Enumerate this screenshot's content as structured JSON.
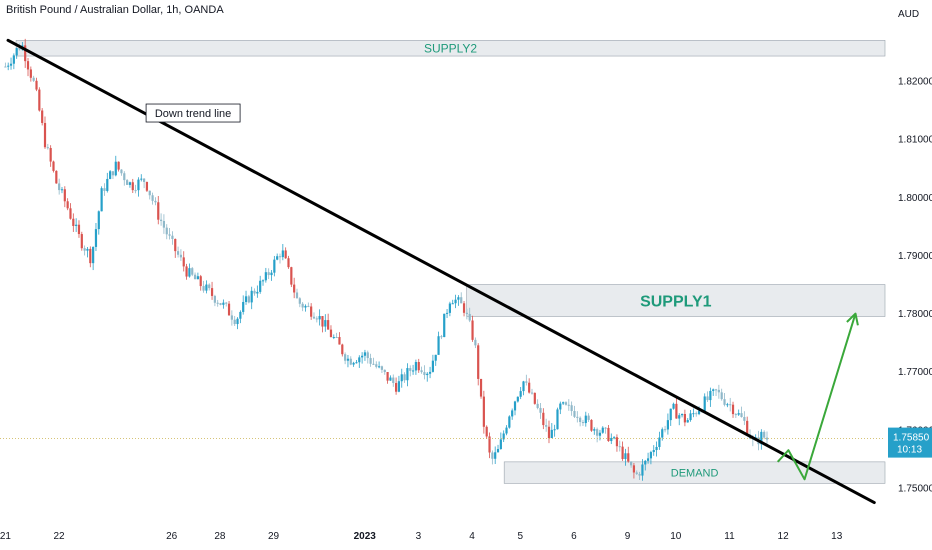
{
  "header": {
    "title": "British Pound / Australian Dollar, 1h, OANDA",
    "currency": "AUD"
  },
  "price_badge": {
    "price": "1.75850",
    "countdown": "10:13"
  },
  "colors": {
    "up": "#26a0c9",
    "down": "#d9534f",
    "trend": "#000000",
    "arrow": "#3aa83a",
    "zone_fill": "#e8ebee",
    "zone_text": "#1e9a7a",
    "badge": "#26a0c9"
  },
  "chart_data": {
    "type": "candlestick",
    "symbol": "GBPAUD",
    "timeframe": "1h",
    "y_axis": {
      "ylim": [
        1.7445,
        1.8305
      ],
      "ticks": [
        "1.82000",
        "1.81000",
        "1.80000",
        "1.79000",
        "1.78000",
        "1.77000",
        "1.76000",
        "1.75000"
      ],
      "tick_values": [
        1.82,
        1.81,
        1.8,
        1.79,
        1.78,
        1.77,
        1.76,
        1.75
      ]
    },
    "x_axis": {
      "labels": [
        {
          "t": 0.0,
          "label": "21",
          "bold": false
        },
        {
          "t": 1.0,
          "label": "22",
          "bold": false
        },
        {
          "t": 3.1,
          "label": "26",
          "bold": false
        },
        {
          "t": 4.0,
          "label": "28",
          "bold": false
        },
        {
          "t": 5.0,
          "label": "29",
          "bold": false
        },
        {
          "t": 6.7,
          "label": "2023",
          "bold": true
        },
        {
          "t": 7.7,
          "label": "3",
          "bold": false
        },
        {
          "t": 8.7,
          "label": "4",
          "bold": false
        },
        {
          "t": 9.6,
          "label": "5",
          "bold": false
        },
        {
          "t": 10.6,
          "label": "6",
          "bold": false
        },
        {
          "t": 11.6,
          "label": "9",
          "bold": false
        },
        {
          "t": 12.5,
          "label": "10",
          "bold": false
        },
        {
          "t": 13.5,
          "label": "11",
          "bold": false
        },
        {
          "t": 14.5,
          "label": "12",
          "bold": false
        },
        {
          "t": 15.5,
          "label": "13",
          "bold": false
        }
      ],
      "t_range": [
        -0.1,
        16.4
      ]
    },
    "price_path": [
      {
        "t": 0.0,
        "p": 1.8225
      },
      {
        "t": 0.3,
        "p": 1.8265
      },
      {
        "t": 0.55,
        "p": 1.819
      },
      {
        "t": 0.75,
        "p": 1.809
      },
      {
        "t": 0.95,
        "p": 1.8025
      },
      {
        "t": 1.15,
        "p": 1.7985
      },
      {
        "t": 1.35,
        "p": 1.7935
      },
      {
        "t": 1.6,
        "p": 1.7895
      },
      {
        "t": 1.8,
        "p": 1.801
      },
      {
        "t": 2.05,
        "p": 1.8055
      },
      {
        "t": 2.35,
        "p": 1.802
      },
      {
        "t": 2.6,
        "p": 1.803
      },
      {
        "t": 2.85,
        "p": 1.797
      },
      {
        "t": 3.1,
        "p": 1.792
      },
      {
        "t": 3.4,
        "p": 1.787
      },
      {
        "t": 3.7,
        "p": 1.7845
      },
      {
        "t": 4.0,
        "p": 1.782
      },
      {
        "t": 4.3,
        "p": 1.779
      },
      {
        "t": 4.55,
        "p": 1.783
      },
      {
        "t": 4.85,
        "p": 1.786
      },
      {
        "t": 5.15,
        "p": 1.791
      },
      {
        "t": 5.45,
        "p": 1.782
      },
      {
        "t": 5.8,
        "p": 1.78
      },
      {
        "t": 6.1,
        "p": 1.776
      },
      {
        "t": 6.4,
        "p": 1.772
      },
      {
        "t": 6.7,
        "p": 1.773
      },
      {
        "t": 7.0,
        "p": 1.77
      },
      {
        "t": 7.3,
        "p": 1.7675
      },
      {
        "t": 7.65,
        "p": 1.7715
      },
      {
        "t": 7.9,
        "p": 1.77
      },
      {
        "t": 8.1,
        "p": 1.776
      },
      {
        "t": 8.3,
        "p": 1.783
      },
      {
        "t": 8.55,
        "p": 1.781
      },
      {
        "t": 8.75,
        "p": 1.775
      },
      {
        "t": 8.9,
        "p": 1.762
      },
      {
        "t": 9.05,
        "p": 1.7545
      },
      {
        "t": 9.2,
        "p": 1.7565
      },
      {
        "t": 9.4,
        "p": 1.763
      },
      {
        "t": 9.65,
        "p": 1.7685
      },
      {
        "t": 9.9,
        "p": 1.764
      },
      {
        "t": 10.15,
        "p": 1.7585
      },
      {
        "t": 10.35,
        "p": 1.764
      },
      {
        "t": 10.65,
        "p": 1.763
      },
      {
        "t": 10.95,
        "p": 1.7605
      },
      {
        "t": 11.25,
        "p": 1.759
      },
      {
        "t": 11.5,
        "p": 1.756
      },
      {
        "t": 11.75,
        "p": 1.752
      },
      {
        "t": 11.95,
        "p": 1.7545
      },
      {
        "t": 12.2,
        "p": 1.759
      },
      {
        "t": 12.45,
        "p": 1.7635
      },
      {
        "t": 12.7,
        "p": 1.7615
      },
      {
        "t": 12.95,
        "p": 1.764
      },
      {
        "t": 13.25,
        "p": 1.7665
      },
      {
        "t": 13.55,
        "p": 1.764
      },
      {
        "t": 13.8,
        "p": 1.761
      },
      {
        "t": 13.95,
        "p": 1.7575
      },
      {
        "t": 14.1,
        "p": 1.759
      },
      {
        "t": 14.2,
        "p": 1.7585
      }
    ],
    "last_price": 1.7585,
    "zones": [
      {
        "name": "SUPPLY2",
        "label": "SUPPLY2",
        "top": 1.827,
        "bottom": 1.8243,
        "t_start": 0.2,
        "t_end": 16.4,
        "label_size": 12
      },
      {
        "name": "SUPPLY1",
        "label": "SUPPLY1",
        "top": 1.785,
        "bottom": 1.7795,
        "t_start": 8.6,
        "t_end": 16.4,
        "label_size": 16
      },
      {
        "name": "DEMAND",
        "label": "DEMAND",
        "top": 1.7545,
        "bottom": 1.7508,
        "t_start": 9.3,
        "t_end": 16.4,
        "label_size": 11
      }
    ],
    "trend_line": {
      "label": "Down trend line",
      "start": {
        "t": 0.05,
        "p": 1.827
      },
      "end": {
        "t": 16.2,
        "p": 1.7475
      },
      "label_at": {
        "t": 3.5,
        "p": 1.8145
      }
    },
    "projection_arrow": [
      {
        "t": 14.4,
        "p": 1.7545
      },
      {
        "t": 14.6,
        "p": 1.7565
      },
      {
        "t": 14.9,
        "p": 1.7515
      },
      {
        "t": 15.85,
        "p": 1.78
      }
    ]
  }
}
